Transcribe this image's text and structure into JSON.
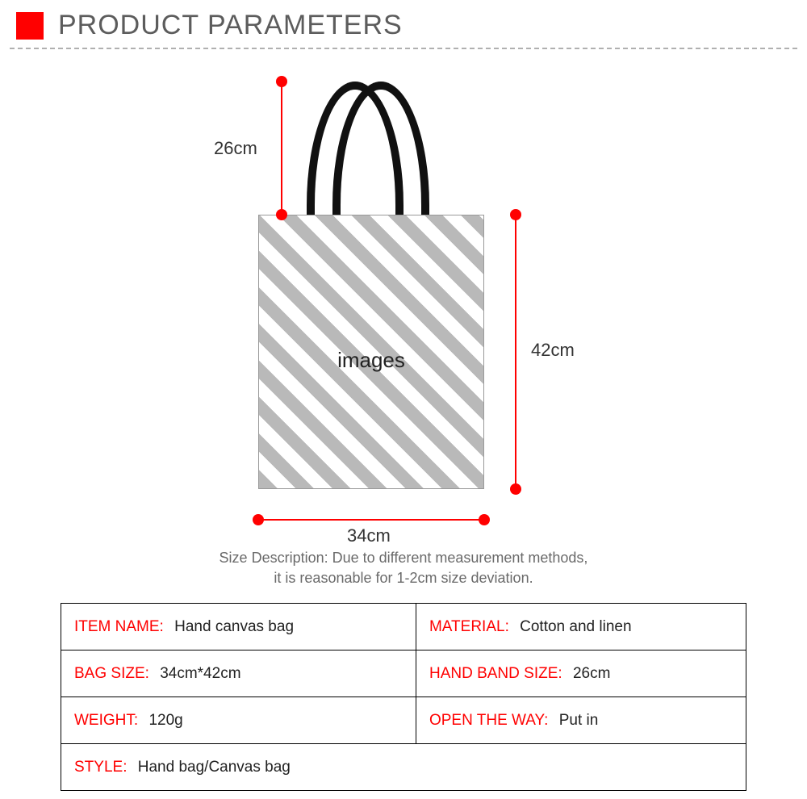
{
  "header": {
    "title": "PRODUCT PARAMETERS",
    "accent_color": "#ff0000",
    "title_color": "#5c5c5c",
    "title_fontsize": 34
  },
  "diagram": {
    "bag_placeholder_text": "images",
    "stripe_color_a": "#b9b9b9",
    "stripe_color_b": "#ffffff",
    "handle_color": "#111111",
    "dim_line_color": "#ff0000",
    "dim_dot_color": "#ff0000",
    "handle_height_label": "26cm",
    "height_label": "42cm",
    "width_label": "34cm",
    "label_fontsize": 22,
    "label_color": "#333333"
  },
  "size_desc": {
    "line1": "Size Description: Due to different measurement methods,",
    "line2": "it is reasonable for 1-2cm size deviation.",
    "color": "#6a6a6a",
    "fontsize": 18
  },
  "table": {
    "label_color": "#ff0000",
    "border_color": "#000000",
    "rows": [
      {
        "left_label": "ITEM NAME:",
        "left_value": "Hand canvas bag",
        "right_label": "MATERIAL:",
        "right_value": "Cotton and linen"
      },
      {
        "left_label": "BAG SIZE:",
        "left_value": "34cm*42cm",
        "right_label": "HAND BAND SIZE:",
        "right_value": "26cm"
      },
      {
        "left_label": "WEIGHT:",
        "left_value": "120g",
        "right_label": "OPEN THE WAY:",
        "right_value": "Put in"
      }
    ],
    "last_row": {
      "label": "STYLE:",
      "value": "Hand bag/Canvas bag"
    }
  }
}
